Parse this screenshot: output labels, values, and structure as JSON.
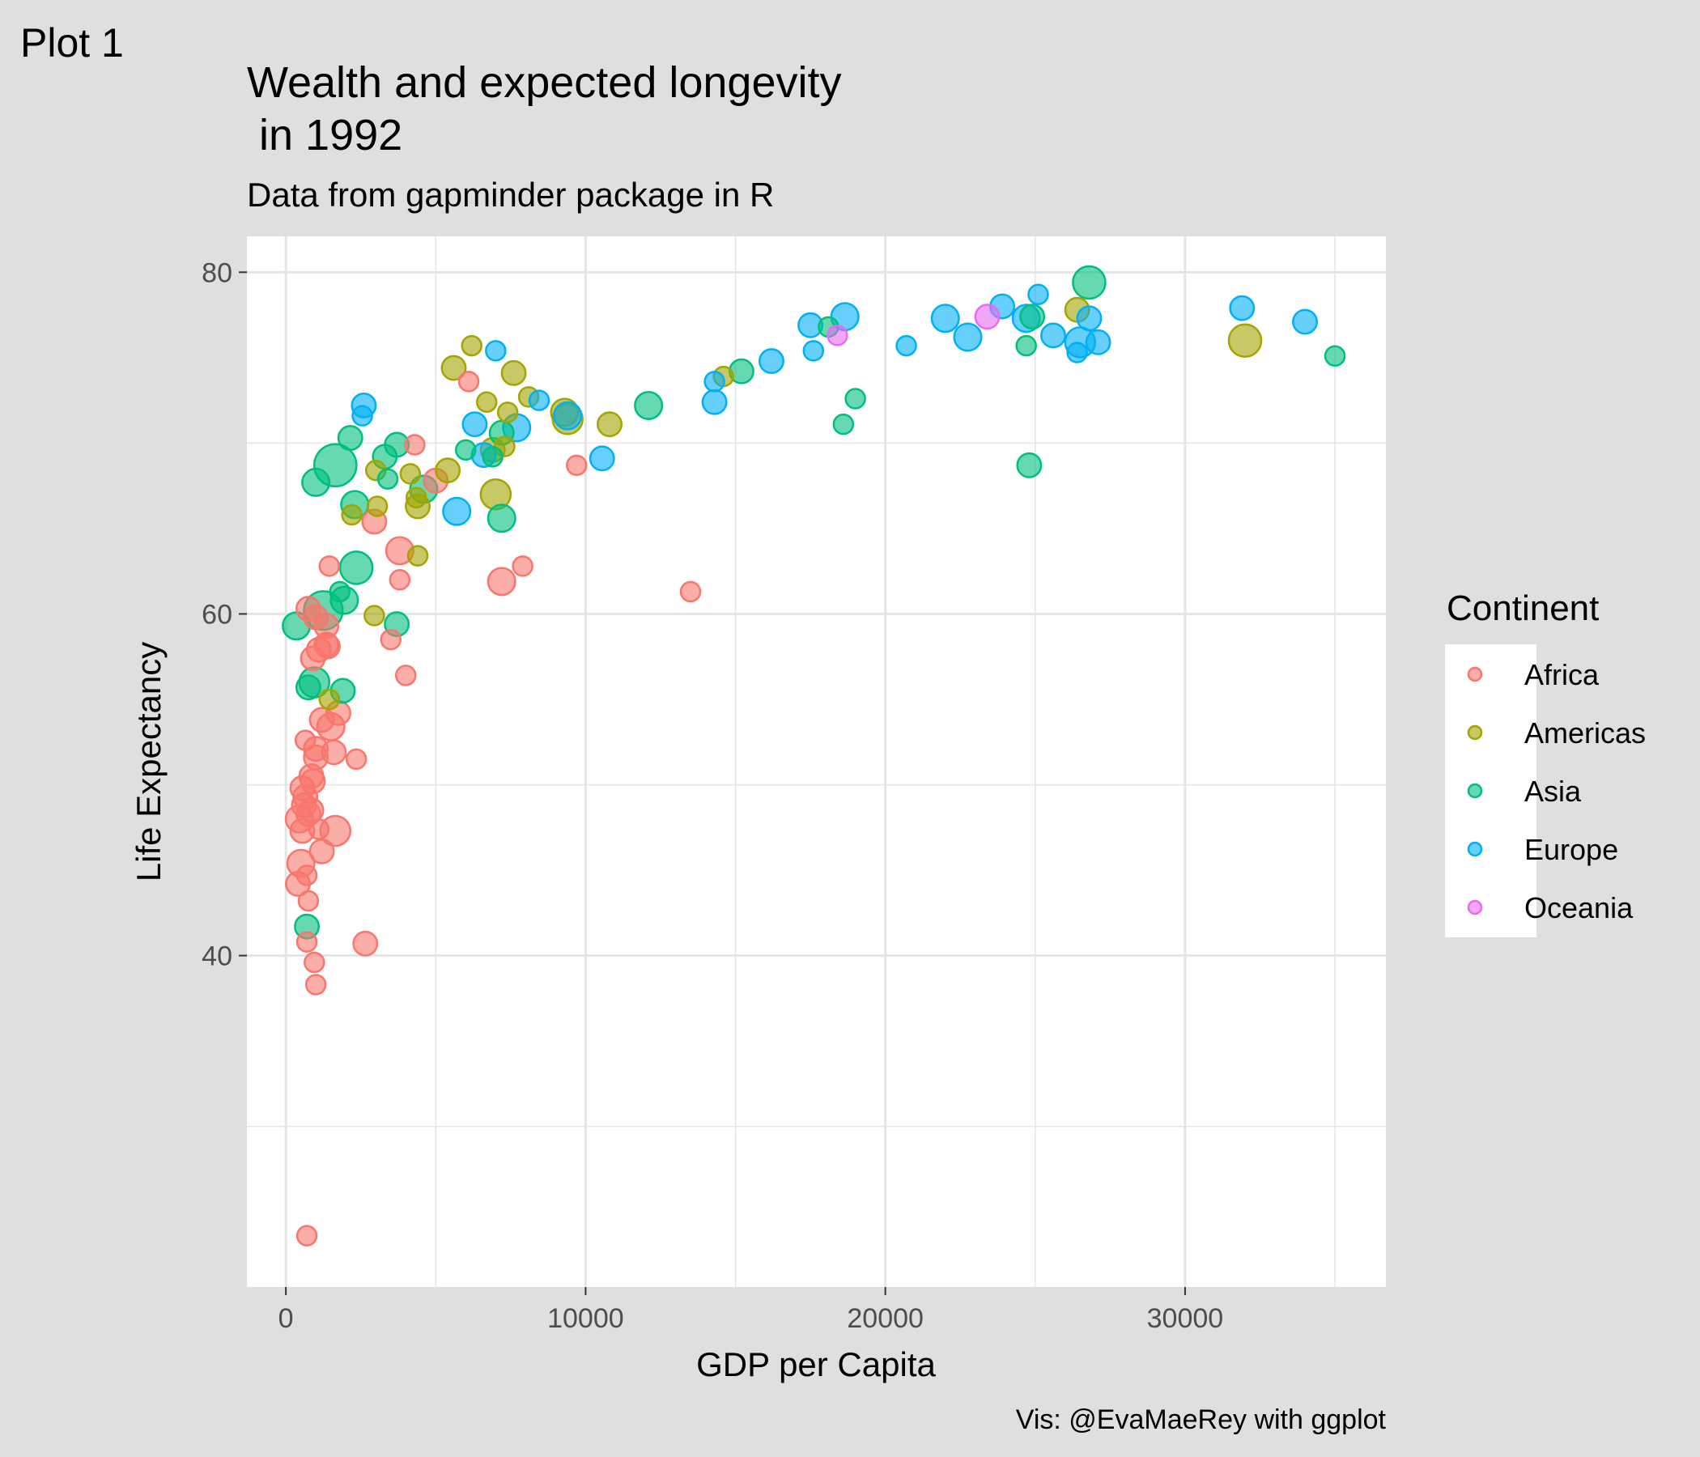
{
  "plot_tag": "Plot 1",
  "caption": "Vis: @EvaMaeRey with ggplot",
  "chart_data": {
    "type": "scatter",
    "title_lines": [
      "Wealth and expected longevity",
      " in 1992"
    ],
    "subtitle": "Data from gapminder package in R",
    "xlabel": "GDP per Capita",
    "ylabel": "Life Expectancy",
    "xlim": [
      -1300,
      36700
    ],
    "ylim": [
      20.6,
      82.1
    ],
    "x_ticks": [
      0,
      10000,
      20000,
      30000
    ],
    "x_tick_labels": [
      "0",
      "10000",
      "20000",
      "30000"
    ],
    "y_ticks": [
      40,
      60,
      80
    ],
    "y_tick_labels": [
      "40",
      "60",
      "80"
    ],
    "grid": true,
    "legend": {
      "title": "Continent",
      "position": "right",
      "entries": [
        "Africa",
        "Americas",
        "Asia",
        "Europe",
        "Oceania"
      ]
    },
    "colors": {
      "Africa": "#F8766D",
      "Americas": "#A3A500",
      "Asia": "#00BF7D",
      "Europe": "#00B0F6",
      "Oceania": "#E76BF3"
    },
    "series": [
      {
        "name": "Africa",
        "points": [
          [
            700,
            23.6,
            1
          ],
          [
            1000,
            38.3,
            1
          ],
          [
            950,
            39.6,
            1
          ],
          [
            2650,
            40.7,
            2
          ],
          [
            700,
            40.8,
            1
          ],
          [
            750,
            43.2,
            1
          ],
          [
            400,
            44.2,
            2
          ],
          [
            700,
            44.7,
            1
          ],
          [
            500,
            45.4,
            3
          ],
          [
            1200,
            46.1,
            2
          ],
          [
            1650,
            47.3,
            4
          ],
          [
            550,
            47.3,
            2
          ],
          [
            1100,
            47.4,
            1
          ],
          [
            450,
            48.0,
            3
          ],
          [
            750,
            48.3,
            2
          ],
          [
            850,
            48.5,
            2
          ],
          [
            600,
            48.8,
            2
          ],
          [
            650,
            49.3,
            2
          ],
          [
            550,
            49.8,
            2
          ],
          [
            900,
            50.2,
            2
          ],
          [
            850,
            50.5,
            2
          ],
          [
            2350,
            51.5,
            1
          ],
          [
            1000,
            51.6,
            2
          ],
          [
            1600,
            51.9,
            2
          ],
          [
            1000,
            52.1,
            2
          ],
          [
            650,
            52.6,
            1
          ],
          [
            1500,
            53.4,
            3
          ],
          [
            1200,
            53.8,
            2
          ],
          [
            1750,
            54.2,
            2
          ],
          [
            4000,
            56.4,
            1
          ],
          [
            1100,
            57.9,
            2
          ],
          [
            1400,
            58.1,
            2
          ],
          [
            1350,
            58.2,
            2
          ],
          [
            3500,
            58.5,
            1
          ],
          [
            900,
            57.4,
            2
          ],
          [
            1350,
            59.3,
            2
          ],
          [
            750,
            60.3,
            2
          ],
          [
            1000,
            59.8,
            2
          ],
          [
            3800,
            62.0,
            1
          ],
          [
            7200,
            61.9,
            3
          ],
          [
            13500,
            61.3,
            1
          ],
          [
            7900,
            62.8,
            1
          ],
          [
            1450,
            62.8,
            1
          ],
          [
            3800,
            63.7,
            3
          ],
          [
            2950,
            65.4,
            2
          ],
          [
            5000,
            67.8,
            2
          ],
          [
            4300,
            69.9,
            1
          ],
          [
            9700,
            68.7,
            1
          ],
          [
            6100,
            73.6,
            1
          ]
        ]
      },
      {
        "name": "Americas",
        "points": [
          [
            1450,
            55.0,
            1
          ],
          [
            2950,
            59.9,
            1
          ],
          [
            4400,
            63.4,
            1
          ],
          [
            2200,
            65.8,
            1
          ],
          [
            3050,
            66.3,
            1
          ],
          [
            4400,
            66.3,
            2
          ],
          [
            4350,
            66.8,
            1
          ],
          [
            7000,
            67.0,
            4
          ],
          [
            3000,
            68.4,
            1
          ],
          [
            4150,
            68.2,
            1
          ],
          [
            5400,
            68.4,
            2
          ],
          [
            6900,
            69.6,
            2
          ],
          [
            7300,
            69.8,
            1
          ],
          [
            9400,
            71.4,
            4
          ],
          [
            9300,
            71.8,
            3
          ],
          [
            10800,
            71.1,
            2
          ],
          [
            7400,
            71.8,
            1
          ],
          [
            6700,
            72.4,
            1
          ],
          [
            8100,
            72.7,
            1
          ],
          [
            7600,
            74.1,
            2
          ],
          [
            5600,
            74.4,
            2
          ],
          [
            14600,
            73.9,
            1
          ],
          [
            6200,
            75.7,
            1
          ],
          [
            26400,
            77.8,
            2
          ],
          [
            32000,
            76.0,
            5
          ]
        ]
      },
      {
        "name": "Asia",
        "points": [
          [
            1650,
            68.7,
            10
          ],
          [
            1250,
            60.2,
            8
          ],
          [
            2350,
            62.7,
            5
          ],
          [
            350,
            59.3,
            3
          ],
          [
            950,
            56.0,
            4
          ],
          [
            750,
            55.7,
            2
          ],
          [
            1900,
            55.5,
            2
          ],
          [
            700,
            41.7,
            2
          ],
          [
            3700,
            59.4,
            2
          ],
          [
            1950,
            60.8,
            3
          ],
          [
            1800,
            61.3,
            1
          ],
          [
            1000,
            67.7,
            3
          ],
          [
            2300,
            66.4,
            3
          ],
          [
            4600,
            67.3,
            3
          ],
          [
            7200,
            65.6,
            3
          ],
          [
            3400,
            67.9,
            1
          ],
          [
            2150,
            70.3,
            2
          ],
          [
            3300,
            69.2,
            2
          ],
          [
            3700,
            69.9,
            2
          ],
          [
            6000,
            69.6,
            1
          ],
          [
            7200,
            70.6,
            2
          ],
          [
            6900,
            69.2,
            1
          ],
          [
            12100,
            72.2,
            3
          ],
          [
            15200,
            74.2,
            2
          ],
          [
            18100,
            76.8,
            1
          ],
          [
            19000,
            72.6,
            1
          ],
          [
            18600,
            71.1,
            1
          ],
          [
            24800,
            68.7,
            2
          ],
          [
            24700,
            75.7,
            1
          ],
          [
            24900,
            77.4,
            2
          ],
          [
            26800,
            79.4,
            5
          ],
          [
            35000,
            75.1,
            1
          ]
        ]
      },
      {
        "name": "Europe",
        "points": [
          [
            2550,
            71.6,
            1
          ],
          [
            2600,
            72.2,
            2
          ],
          [
            6300,
            71.1,
            2
          ],
          [
            5700,
            66.0,
            3
          ],
          [
            6600,
            69.3,
            2
          ],
          [
            7700,
            70.9,
            3
          ],
          [
            8450,
            72.5,
            1
          ],
          [
            7000,
            75.4,
            1
          ],
          [
            9400,
            71.6,
            3
          ],
          [
            10550,
            69.1,
            2
          ],
          [
            14300,
            72.4,
            2
          ],
          [
            14300,
            73.6,
            1
          ],
          [
            16200,
            74.8,
            2
          ],
          [
            17600,
            75.4,
            1
          ],
          [
            17500,
            76.9,
            2
          ],
          [
            18650,
            77.4,
            3
          ],
          [
            20700,
            75.7,
            1
          ],
          [
            22000,
            77.3,
            3
          ],
          [
            22750,
            76.2,
            3
          ],
          [
            23900,
            78.0,
            2
          ],
          [
            24700,
            77.3,
            3
          ],
          [
            25100,
            78.7,
            1
          ],
          [
            25600,
            76.3,
            2
          ],
          [
            26400,
            75.3,
            1
          ],
          [
            26500,
            75.9,
            4
          ],
          [
            26800,
            77.3,
            2
          ],
          [
            27100,
            75.9,
            2
          ],
          [
            31900,
            77.9,
            2
          ],
          [
            34000,
            77.1,
            2
          ]
        ]
      },
      {
        "name": "Oceania",
        "points": [
          [
            18400,
            76.3,
            1
          ],
          [
            23400,
            77.4,
            2
          ]
        ]
      }
    ]
  }
}
